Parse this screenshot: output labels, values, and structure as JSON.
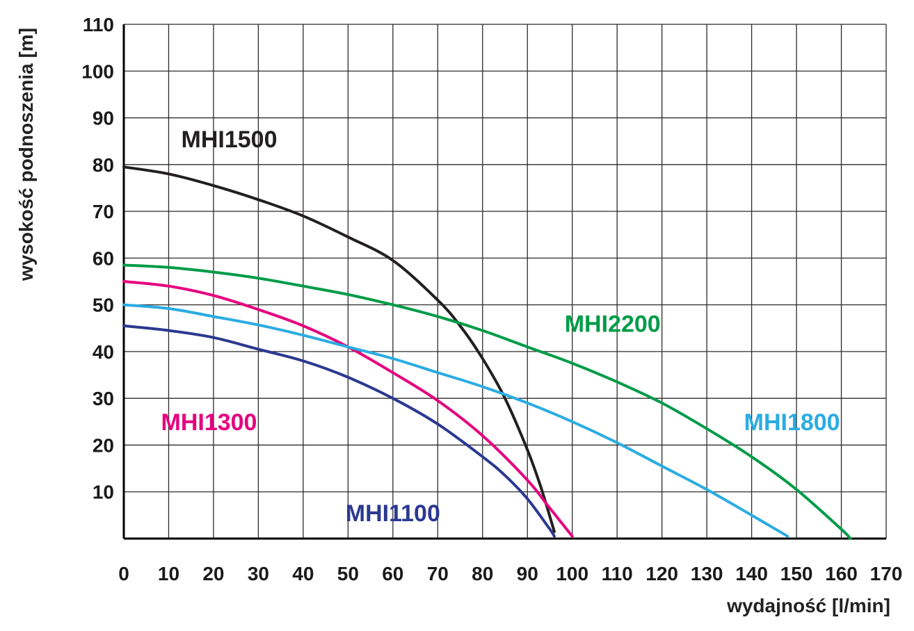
{
  "colors": {
    "background": "#ffffff",
    "grid": "#2b2b2b",
    "axis": "#000000",
    "tick_text": "#1a1a1a",
    "axis_label_text": "#222222"
  },
  "chart_data": {
    "type": "line",
    "title": "",
    "xlabel": "wydajność [l/min]",
    "ylabel": "wysokość podnoszenia [m]",
    "xlim": [
      0,
      170
    ],
    "ylim": [
      0,
      110
    ],
    "grid": true,
    "x_ticks": [
      0,
      10,
      20,
      30,
      40,
      50,
      60,
      70,
      80,
      90,
      100,
      110,
      120,
      130,
      140,
      150,
      160,
      170
    ],
    "y_ticks": [
      10,
      20,
      30,
      40,
      50,
      60,
      70,
      80,
      90,
      100,
      110
    ],
    "series": [
      {
        "name": "MHI1500",
        "label": "MHI1500",
        "color": "#231f20",
        "label_pos": {
          "x": 23.5,
          "y": 85.5
        },
        "points": [
          [
            0,
            79.5
          ],
          [
            10,
            78
          ],
          [
            20,
            75.5
          ],
          [
            30,
            72.5
          ],
          [
            40,
            69
          ],
          [
            50,
            64.5
          ],
          [
            60,
            59.5
          ],
          [
            70,
            51
          ],
          [
            75,
            45.5
          ],
          [
            80,
            38.5
          ],
          [
            85,
            30
          ],
          [
            90,
            19
          ],
          [
            93,
            11
          ],
          [
            96,
            1.5
          ]
        ]
      },
      {
        "name": "MHI2200",
        "label": "MHI2200",
        "color": "#009b48",
        "label_pos": {
          "x": 109,
          "y": 46
        },
        "points": [
          [
            0,
            58.5
          ],
          [
            10,
            58
          ],
          [
            20,
            57
          ],
          [
            30,
            55.7
          ],
          [
            40,
            54
          ],
          [
            50,
            52.2
          ],
          [
            60,
            50
          ],
          [
            70,
            47.5
          ],
          [
            80,
            44.5
          ],
          [
            90,
            41
          ],
          [
            100,
            37.5
          ],
          [
            110,
            33.5
          ],
          [
            120,
            29
          ],
          [
            130,
            23.5
          ],
          [
            140,
            17.5
          ],
          [
            150,
            10.5
          ],
          [
            160,
            2
          ],
          [
            162,
            0
          ]
        ]
      },
      {
        "name": "MHI1300",
        "label": "MHI1300",
        "color": "#e6007e",
        "label_pos": {
          "x": 19,
          "y": 25
        },
        "points": [
          [
            0,
            55
          ],
          [
            10,
            54
          ],
          [
            20,
            52
          ],
          [
            30,
            49
          ],
          [
            40,
            45.5
          ],
          [
            50,
            41
          ],
          [
            60,
            35.5
          ],
          [
            70,
            29.5
          ],
          [
            80,
            22
          ],
          [
            90,
            12.5
          ],
          [
            95,
            6.5
          ],
          [
            100,
            0.5
          ]
        ]
      },
      {
        "name": "MHI1800",
        "label": "MHI1800",
        "color": "#2aace2",
        "label_pos": {
          "x": 149,
          "y": 25
        },
        "points": [
          [
            0,
            50
          ],
          [
            10,
            49.2
          ],
          [
            20,
            47.5
          ],
          [
            30,
            45.7
          ],
          [
            40,
            43.5
          ],
          [
            50,
            41
          ],
          [
            60,
            38.5
          ],
          [
            70,
            35.5
          ],
          [
            80,
            32.5
          ],
          [
            90,
            29
          ],
          [
            100,
            25
          ],
          [
            110,
            20.5
          ],
          [
            120,
            15.5
          ],
          [
            130,
            10.5
          ],
          [
            140,
            5
          ],
          [
            148,
            0.5
          ]
        ]
      },
      {
        "name": "MHI1100",
        "label": "MHI1100",
        "color": "#2b3990",
        "label_pos": {
          "x": 60,
          "y": 5.5
        },
        "points": [
          [
            0,
            45.5
          ],
          [
            10,
            44.5
          ],
          [
            20,
            43
          ],
          [
            30,
            40.5
          ],
          [
            40,
            38
          ],
          [
            50,
            34.5
          ],
          [
            60,
            30
          ],
          [
            70,
            24.5
          ],
          [
            80,
            17.5
          ],
          [
            85,
            13.5
          ],
          [
            90,
            8.5
          ],
          [
            95,
            2
          ],
          [
            96,
            0.5
          ]
        ]
      }
    ]
  }
}
